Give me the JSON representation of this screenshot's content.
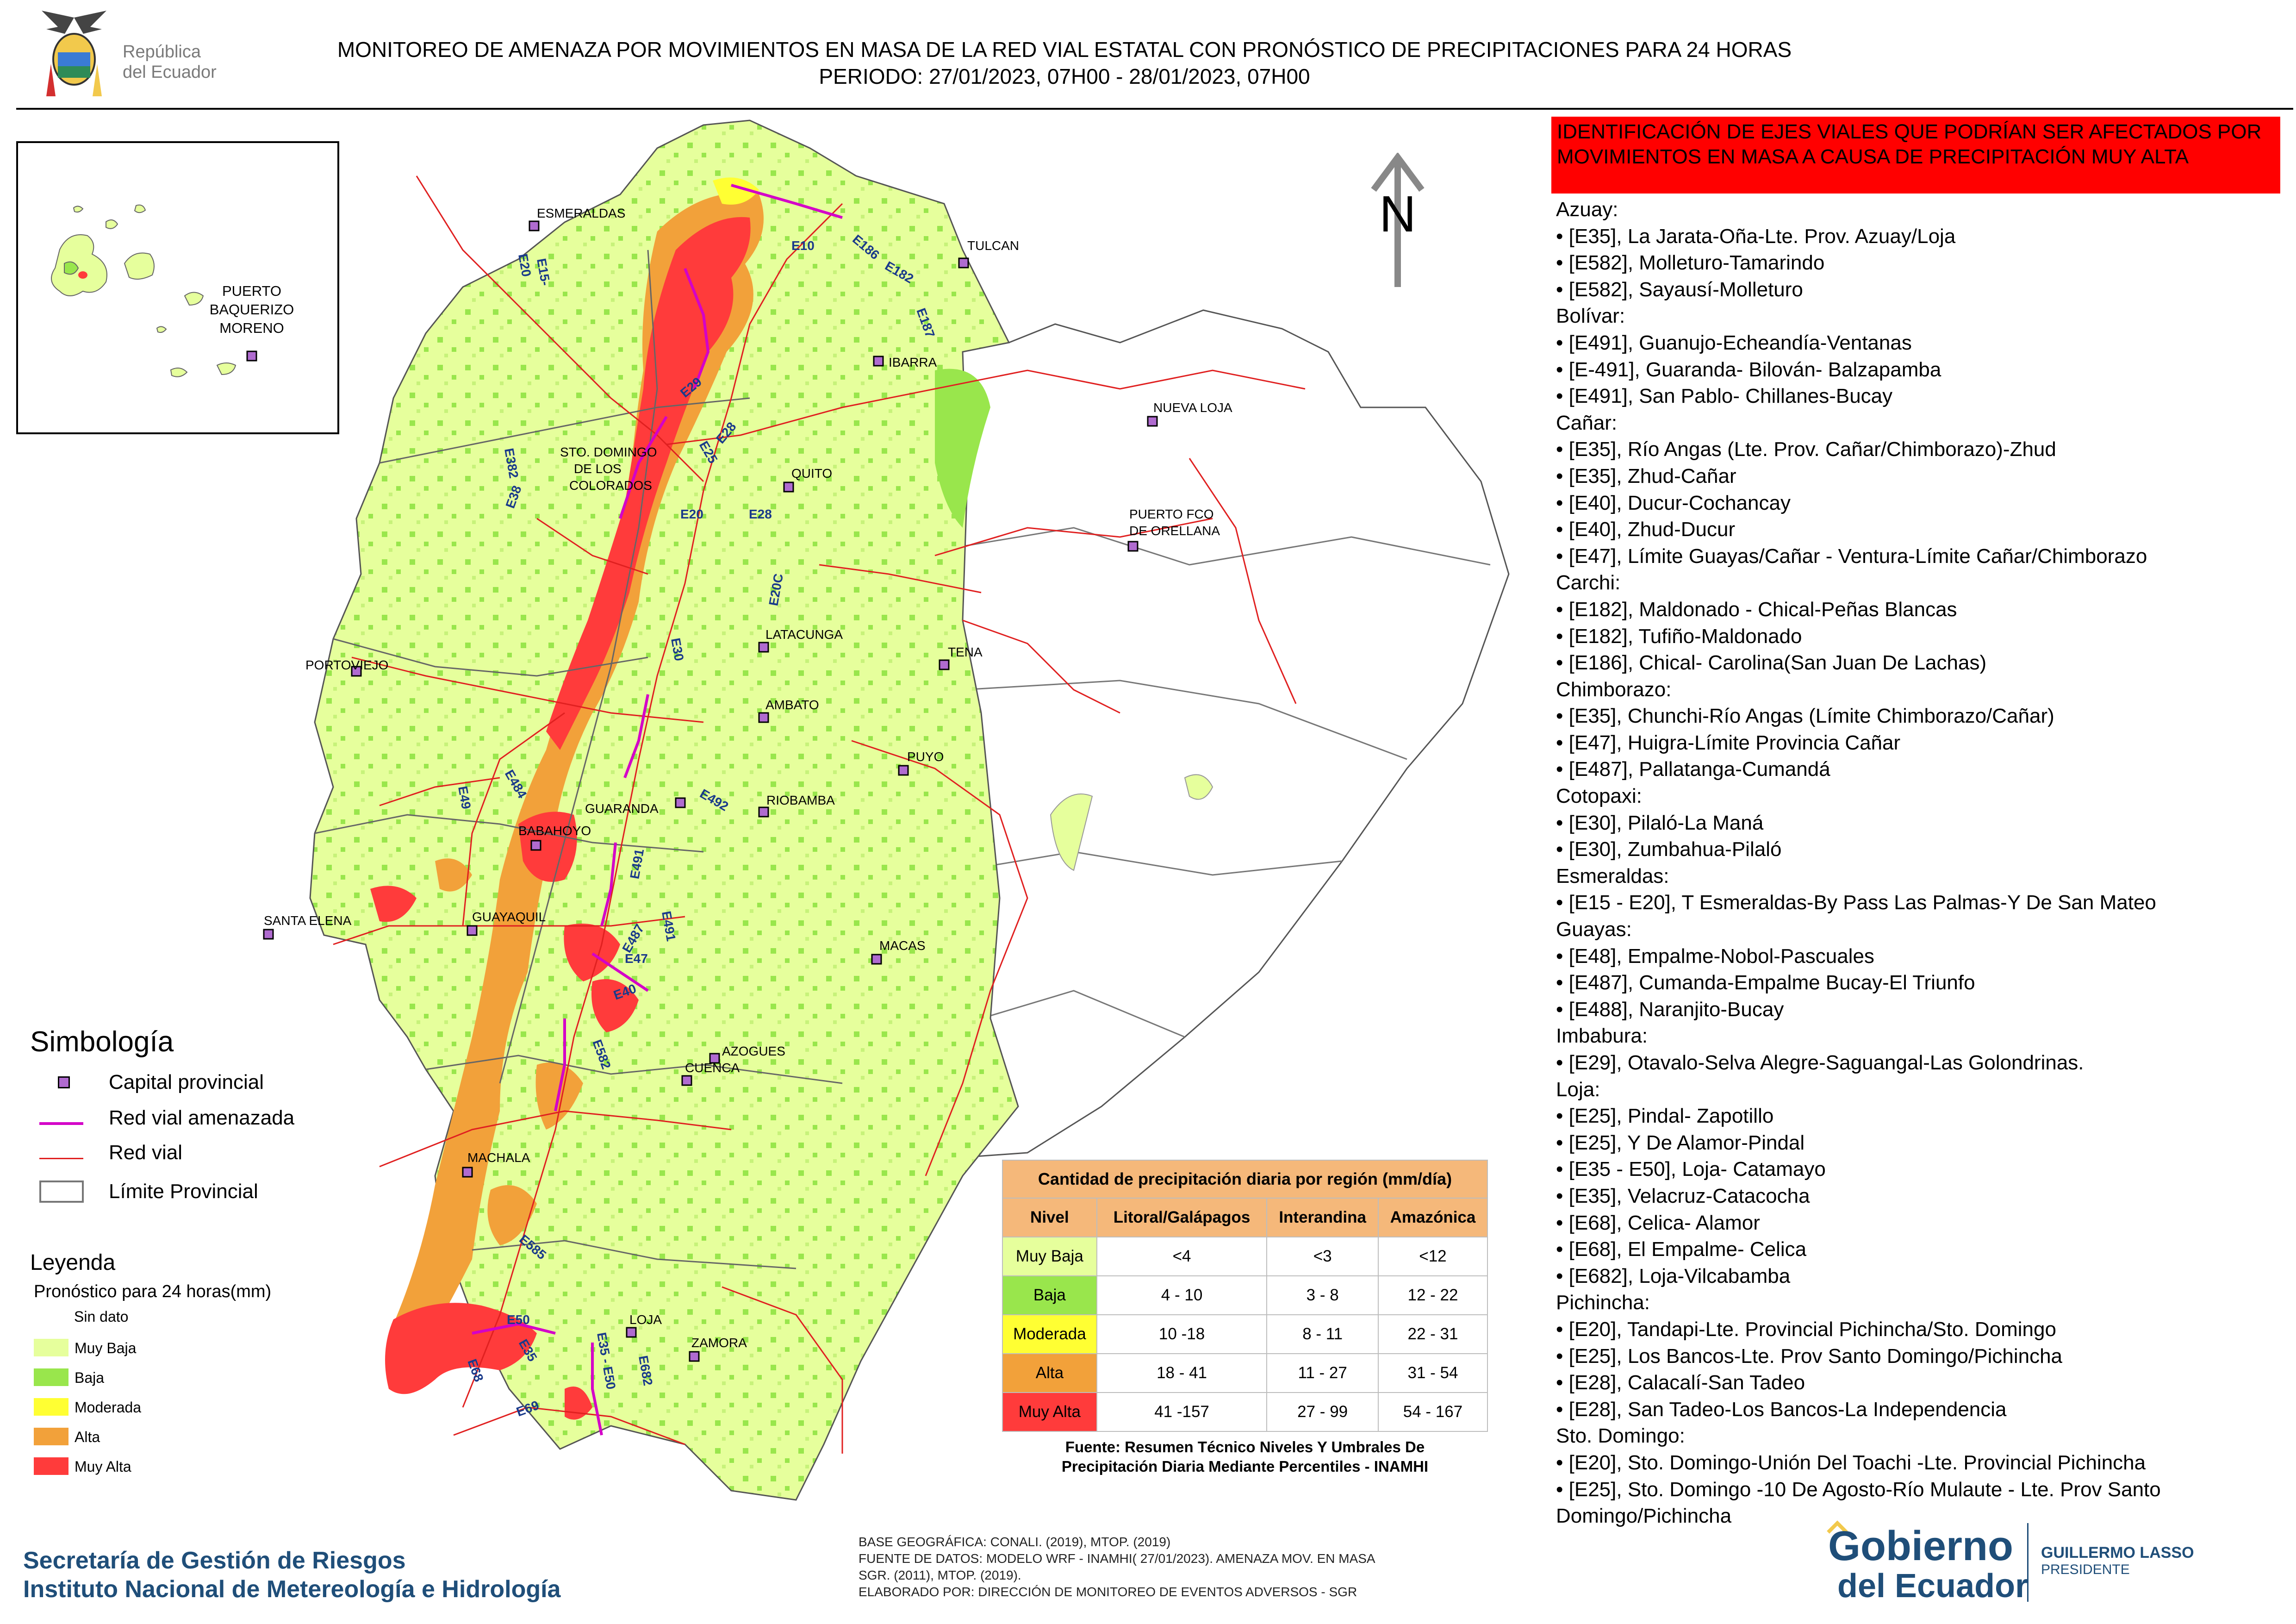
{
  "header": {
    "title_line1": "MONITOREO DE AMENAZA POR MOVIMIENTOS EN MASA DE LA RED VIAL  ESTATAL  CON PRONÓSTICO  DE  PRECIPITACIONES PARA 24 HORAS",
    "title_line2": "PERIODO: 27/01/2023, 07H00 - 28/01/2023, 07H00",
    "logo_text_line1": "República",
    "logo_text_line2": "del Ecuador"
  },
  "colors": {
    "muy_baja": "#e6ff9c",
    "baja": "#99e64c",
    "moderada": "#ffff33",
    "alta": "#f2a13a",
    "muy_alta": "#ff3b3b",
    "road": "#e02020",
    "threatened_road": "#d400c8",
    "capital_marker": "#b06bd0",
    "panel_header": "#ff0000",
    "footer_text": "#1f4e79"
  },
  "map": {
    "north_label": "N",
    "inset_cities": [
      {
        "name_line1": "PUERTO",
        "name_line2": "BAQUERIZO",
        "name_line3": "MORENO"
      }
    ],
    "cities": [
      {
        "name": "ESMERALDAS"
      },
      {
        "name": "TULCAN"
      },
      {
        "name": "IBARRA"
      },
      {
        "name": "NUEVA LOJA"
      },
      {
        "name": "STO. DOMINGO"
      },
      {
        "name": "DE LOS"
      },
      {
        "name": "COLORADOS"
      },
      {
        "name": "QUITO"
      },
      {
        "name": "PUERTO FCO"
      },
      {
        "name": "DE ORELLANA"
      },
      {
        "name": "TENA"
      },
      {
        "name": "LATACUNGA"
      },
      {
        "name": "PORTOVIEJO"
      },
      {
        "name": "AMBATO"
      },
      {
        "name": "PUYO"
      },
      {
        "name": "GUARANDA"
      },
      {
        "name": "RIOBAMBA"
      },
      {
        "name": "BABAHOYO"
      },
      {
        "name": "SANTA ELENA"
      },
      {
        "name": "GUAYAQUIL"
      },
      {
        "name": "MACAS"
      },
      {
        "name": "AZOGUES"
      },
      {
        "name": "CUENCA"
      },
      {
        "name": "MACHALA"
      },
      {
        "name": "LOJA"
      },
      {
        "name": "ZAMORA"
      }
    ],
    "road_labels": [
      "E15-",
      "E20",
      "E10",
      "E182",
      "E187",
      "E29",
      "E28",
      "E25",
      "E382",
      "E38",
      "E20",
      "E28",
      "E20C",
      "E30",
      "E49",
      "E484",
      "E492",
      "E491",
      "E491",
      "E487",
      "E47",
      "E40",
      "E582",
      "E585",
      "E50",
      "E35",
      "E68",
      "E69",
      "E35 - E50",
      "E682",
      "E186"
    ]
  },
  "simbologia": {
    "title": "Simbología",
    "items": [
      {
        "label": "Capital provincial"
      },
      {
        "label": "Red vial amenazada"
      },
      {
        "label": "Red vial"
      },
      {
        "label": "Límite Provincial"
      }
    ]
  },
  "leyenda": {
    "title": "Leyenda",
    "subtitle": "Pronóstico para 24 horas(mm)",
    "items": [
      {
        "label": "Sin dato"
      },
      {
        "label": " Muy Baja"
      },
      {
        "label": "Baja"
      },
      {
        "label": "Moderada"
      },
      {
        "label": "Alta"
      },
      {
        "label": "Muy Alta"
      }
    ]
  },
  "precip_table": {
    "caption": "Cantidad de precipitación diaria por región (mm/día)",
    "headers": [
      "Nivel",
      "Litoral/Galápagos",
      "Interandina",
      "Amazónica"
    ],
    "rows": [
      {
        "nivel": "Muy Baja",
        "litoral": "<4",
        "interandina": "<3",
        "amazonica": "<12"
      },
      {
        "nivel": "Baja",
        "litoral": "4 - 10",
        "interandina": "3 - 8",
        "amazonica": "12 - 22"
      },
      {
        "nivel": "Moderada",
        "litoral": "10 -18",
        "interandina": "8 - 11",
        "amazonica": "22 - 31"
      },
      {
        "nivel": "Alta",
        "litoral": "18 - 41",
        "interandina": "11 - 27",
        "amazonica": "31 - 54"
      },
      {
        "nivel": "Muy Alta",
        "litoral": "41 -157",
        "interandina": "27 - 99",
        "amazonica": "54 - 167"
      }
    ],
    "source_line1": "Fuente: Resumen Técnico Niveles Y Umbrales De",
    "source_line2": "Precipitación Diaria Mediante Percentiles - INAMHI"
  },
  "panel": {
    "header": "IDENTIFICACIÓN DE EJES VIALES QUE PODRÍAN SER AFECTADOS POR MOVIMIENTOS EN MASA A CAUSA DE PRECIPITACIÓN MUY ALTA",
    "lines": [
      {
        "type": "prov",
        "text": "Azuay:"
      },
      {
        "type": "item",
        "text": "• [E35], La Jarata-Oña-Lte. Prov. Azuay/Loja"
      },
      {
        "type": "item",
        "text": "• [E582], Molleturo-Tamarindo"
      },
      {
        "type": "item",
        "text": "• [E582], Sayausí-Molleturo"
      },
      {
        "type": "prov",
        "text": "Bolívar:"
      },
      {
        "type": "item",
        "text": "• [E491], Guanujo-Echeandía-Ventanas"
      },
      {
        "type": "item",
        "text": "• [E-491], Guaranda- Bilován- Balzapamba"
      },
      {
        "type": "item",
        "text": "• [E491], San Pablo- Chillanes-Bucay"
      },
      {
        "type": "prov",
        "text": "Cañar:"
      },
      {
        "type": "item",
        "text": "• [E35], Río Angas (Lte. Prov. Cañar/Chimborazo)-Zhud"
      },
      {
        "type": "item",
        "text": "• [E35], Zhud-Cañar"
      },
      {
        "type": "item",
        "text": "• [E40], Ducur-Cochancay"
      },
      {
        "type": "item",
        "text": "• [E40], Zhud-Ducur"
      },
      {
        "type": "item",
        "text": "• [E47], Límite Guayas/Cañar - Ventura-Límite Cañar/Chimborazo"
      },
      {
        "type": "prov",
        "text": "Carchi:"
      },
      {
        "type": "item",
        "text": "• [E182], Maldonado - Chical-Peñas Blancas"
      },
      {
        "type": "item",
        "text": "• [E182], Tufiño-Maldonado"
      },
      {
        "type": "item",
        "text": "• [E186], Chical- Carolina(San Juan De Lachas)"
      },
      {
        "type": "prov",
        "text": "Chimborazo:"
      },
      {
        "type": "item",
        "text": "• [E35], Chunchi-Río Angas (Límite Chimborazo/Cañar)"
      },
      {
        "type": "item",
        "text": "• [E47], Huigra-Límite Provincia Cañar"
      },
      {
        "type": "item",
        "text": "• [E487], Pallatanga-Cumandá"
      },
      {
        "type": "prov",
        "text": "Cotopaxi:"
      },
      {
        "type": "item",
        "text": "• [E30], Pilaló-La Maná"
      },
      {
        "type": "item",
        "text": "• [E30], Zumbahua-Pilaló"
      },
      {
        "type": "prov",
        "text": "Esmeraldas:"
      },
      {
        "type": "item",
        "text": "• [E15 - E20], T Esmeraldas-By Pass Las Palmas-Y De San Mateo"
      },
      {
        "type": "prov",
        "text": "Guayas:"
      },
      {
        "type": "item",
        "text": "• [E48], Empalme-Nobol-Pascuales"
      },
      {
        "type": "item",
        "text": "• [E487], Cumanda-Empalme Bucay-El Triunfo"
      },
      {
        "type": "item",
        "text": "• [E488], Naranjito-Bucay"
      },
      {
        "type": "prov",
        "text": "Imbabura:"
      },
      {
        "type": "item",
        "text": "• [E29], Otavalo-Selva Alegre-Saguangal-Las Golondrinas."
      },
      {
        "type": "prov",
        "text": "Loja:"
      },
      {
        "type": "item",
        "text": "• [E25], Pindal- Zapotillo"
      },
      {
        "type": "item",
        "text": "• [E25], Y De Alamor-Pindal"
      },
      {
        "type": "item",
        "text": "• [E35 - E50], Loja- Catamayo"
      },
      {
        "type": "item",
        "text": "• [E35], Velacruz-Catacocha"
      },
      {
        "type": "item",
        "text": "• [E68], Celica- Alamor"
      },
      {
        "type": "item",
        "text": "• [E68], El Empalme- Celica"
      },
      {
        "type": "item",
        "text": "• [E682], Loja-Vilcabamba"
      },
      {
        "type": "prov",
        "text": "Pichincha:"
      },
      {
        "type": "item",
        "text": "• [E20], Tandapi-Lte. Provincial Pichincha/Sto. Domingo"
      },
      {
        "type": "item",
        "text": "• [E25], Los Bancos-Lte. Prov Santo Domingo/Pichincha"
      },
      {
        "type": "item",
        "text": "• [E28], Calacalí-San Tadeo"
      },
      {
        "type": "item",
        "text": "• [E28], San Tadeo-Los Bancos-La Independencia"
      },
      {
        "type": "prov",
        "text": "Sto. Domingo:"
      },
      {
        "type": "item",
        "text": "• [E20], Sto. Domingo-Unión Del Toachi -Lte. Provincial Pichincha"
      },
      {
        "type": "item",
        "text": "• [E25], Sto. Domingo -10 De Agosto-Río Mulaute - Lte. Prov Santo Domingo/Pichincha"
      }
    ]
  },
  "footer": {
    "left_line1": "Secretaría de Gestión de Riesgos",
    "left_line2": "Instituto Nacional de Metereología e Hidrología",
    "mid_line1": "BASE GEOGRÁFICA: CONALI. (2019), MTOP. (2019)",
    "mid_line2": "FUENTE DE DATOS: MODELO WRF - INAMHI( 27/01/2023).  AMENAZA MOV. EN MASA",
    "mid_line3": "SGR. (2011), MTOP. (2019).",
    "mid_line4": "ELABORADO POR: DIRECCIÓN DE MONITOREO DE EVENTOS ADVERSOS - SGR",
    "gob_line1": "Gobierno",
    "gob_line2": "del Ecuador",
    "president_line1": "GUILLERMO LASSO",
    "president_line2": "PRESIDENTE"
  }
}
